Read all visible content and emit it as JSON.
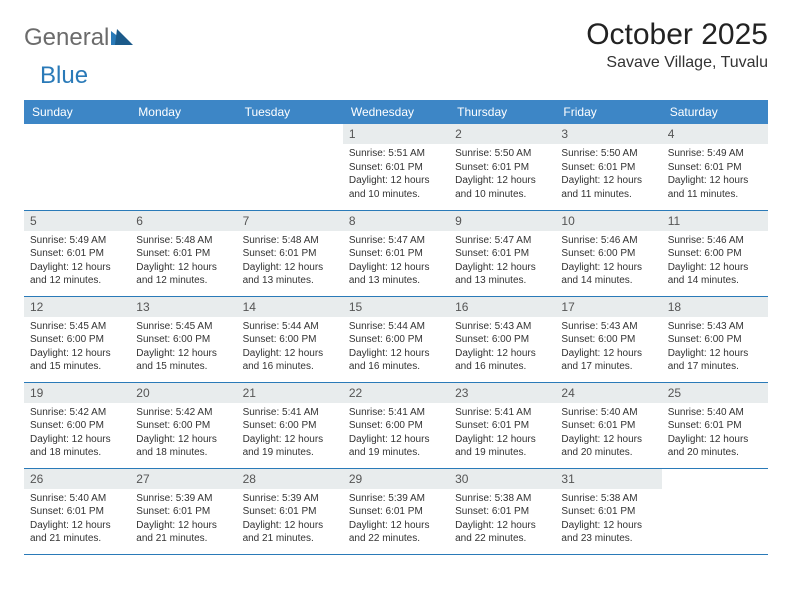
{
  "logo": {
    "text1": "General",
    "text2": "Blue"
  },
  "title": "October 2025",
  "location": "Savave Village, Tuvalu",
  "colors": {
    "header_bg": "#3d86c6",
    "header_text": "#ffffff",
    "daynum_bg": "#e8eced",
    "border": "#2a7ab8",
    "logo_gray": "#6b6b6b",
    "logo_blue": "#2a7ab8"
  },
  "weekdays": [
    "Sunday",
    "Monday",
    "Tuesday",
    "Wednesday",
    "Thursday",
    "Friday",
    "Saturday"
  ],
  "days": {
    "1": {
      "sunrise": "5:51 AM",
      "sunset": "6:01 PM",
      "daylight": "12 hours and 10 minutes."
    },
    "2": {
      "sunrise": "5:50 AM",
      "sunset": "6:01 PM",
      "daylight": "12 hours and 10 minutes."
    },
    "3": {
      "sunrise": "5:50 AM",
      "sunset": "6:01 PM",
      "daylight": "12 hours and 11 minutes."
    },
    "4": {
      "sunrise": "5:49 AM",
      "sunset": "6:01 PM",
      "daylight": "12 hours and 11 minutes."
    },
    "5": {
      "sunrise": "5:49 AM",
      "sunset": "6:01 PM",
      "daylight": "12 hours and 12 minutes."
    },
    "6": {
      "sunrise": "5:48 AM",
      "sunset": "6:01 PM",
      "daylight": "12 hours and 12 minutes."
    },
    "7": {
      "sunrise": "5:48 AM",
      "sunset": "6:01 PM",
      "daylight": "12 hours and 13 minutes."
    },
    "8": {
      "sunrise": "5:47 AM",
      "sunset": "6:01 PM",
      "daylight": "12 hours and 13 minutes."
    },
    "9": {
      "sunrise": "5:47 AM",
      "sunset": "6:01 PM",
      "daylight": "12 hours and 13 minutes."
    },
    "10": {
      "sunrise": "5:46 AM",
      "sunset": "6:00 PM",
      "daylight": "12 hours and 14 minutes."
    },
    "11": {
      "sunrise": "5:46 AM",
      "sunset": "6:00 PM",
      "daylight": "12 hours and 14 minutes."
    },
    "12": {
      "sunrise": "5:45 AM",
      "sunset": "6:00 PM",
      "daylight": "12 hours and 15 minutes."
    },
    "13": {
      "sunrise": "5:45 AM",
      "sunset": "6:00 PM",
      "daylight": "12 hours and 15 minutes."
    },
    "14": {
      "sunrise": "5:44 AM",
      "sunset": "6:00 PM",
      "daylight": "12 hours and 16 minutes."
    },
    "15": {
      "sunrise": "5:44 AM",
      "sunset": "6:00 PM",
      "daylight": "12 hours and 16 minutes."
    },
    "16": {
      "sunrise": "5:43 AM",
      "sunset": "6:00 PM",
      "daylight": "12 hours and 16 minutes."
    },
    "17": {
      "sunrise": "5:43 AM",
      "sunset": "6:00 PM",
      "daylight": "12 hours and 17 minutes."
    },
    "18": {
      "sunrise": "5:43 AM",
      "sunset": "6:00 PM",
      "daylight": "12 hours and 17 minutes."
    },
    "19": {
      "sunrise": "5:42 AM",
      "sunset": "6:00 PM",
      "daylight": "12 hours and 18 minutes."
    },
    "20": {
      "sunrise": "5:42 AM",
      "sunset": "6:00 PM",
      "daylight": "12 hours and 18 minutes."
    },
    "21": {
      "sunrise": "5:41 AM",
      "sunset": "6:00 PM",
      "daylight": "12 hours and 19 minutes."
    },
    "22": {
      "sunrise": "5:41 AM",
      "sunset": "6:00 PM",
      "daylight": "12 hours and 19 minutes."
    },
    "23": {
      "sunrise": "5:41 AM",
      "sunset": "6:01 PM",
      "daylight": "12 hours and 19 minutes."
    },
    "24": {
      "sunrise": "5:40 AM",
      "sunset": "6:01 PM",
      "daylight": "12 hours and 20 minutes."
    },
    "25": {
      "sunrise": "5:40 AM",
      "sunset": "6:01 PM",
      "daylight": "12 hours and 20 minutes."
    },
    "26": {
      "sunrise": "5:40 AM",
      "sunset": "6:01 PM",
      "daylight": "12 hours and 21 minutes."
    },
    "27": {
      "sunrise": "5:39 AM",
      "sunset": "6:01 PM",
      "daylight": "12 hours and 21 minutes."
    },
    "28": {
      "sunrise": "5:39 AM",
      "sunset": "6:01 PM",
      "daylight": "12 hours and 21 minutes."
    },
    "29": {
      "sunrise": "5:39 AM",
      "sunset": "6:01 PM",
      "daylight": "12 hours and 22 minutes."
    },
    "30": {
      "sunrise": "5:38 AM",
      "sunset": "6:01 PM",
      "daylight": "12 hours and 22 minutes."
    },
    "31": {
      "sunrise": "5:38 AM",
      "sunset": "6:01 PM",
      "daylight": "12 hours and 23 minutes."
    }
  },
  "layout": {
    "first_weekday_index": 3,
    "num_days": 31,
    "labels": {
      "sunrise": "Sunrise: ",
      "sunset": "Sunset: ",
      "daylight": "Daylight: "
    }
  }
}
